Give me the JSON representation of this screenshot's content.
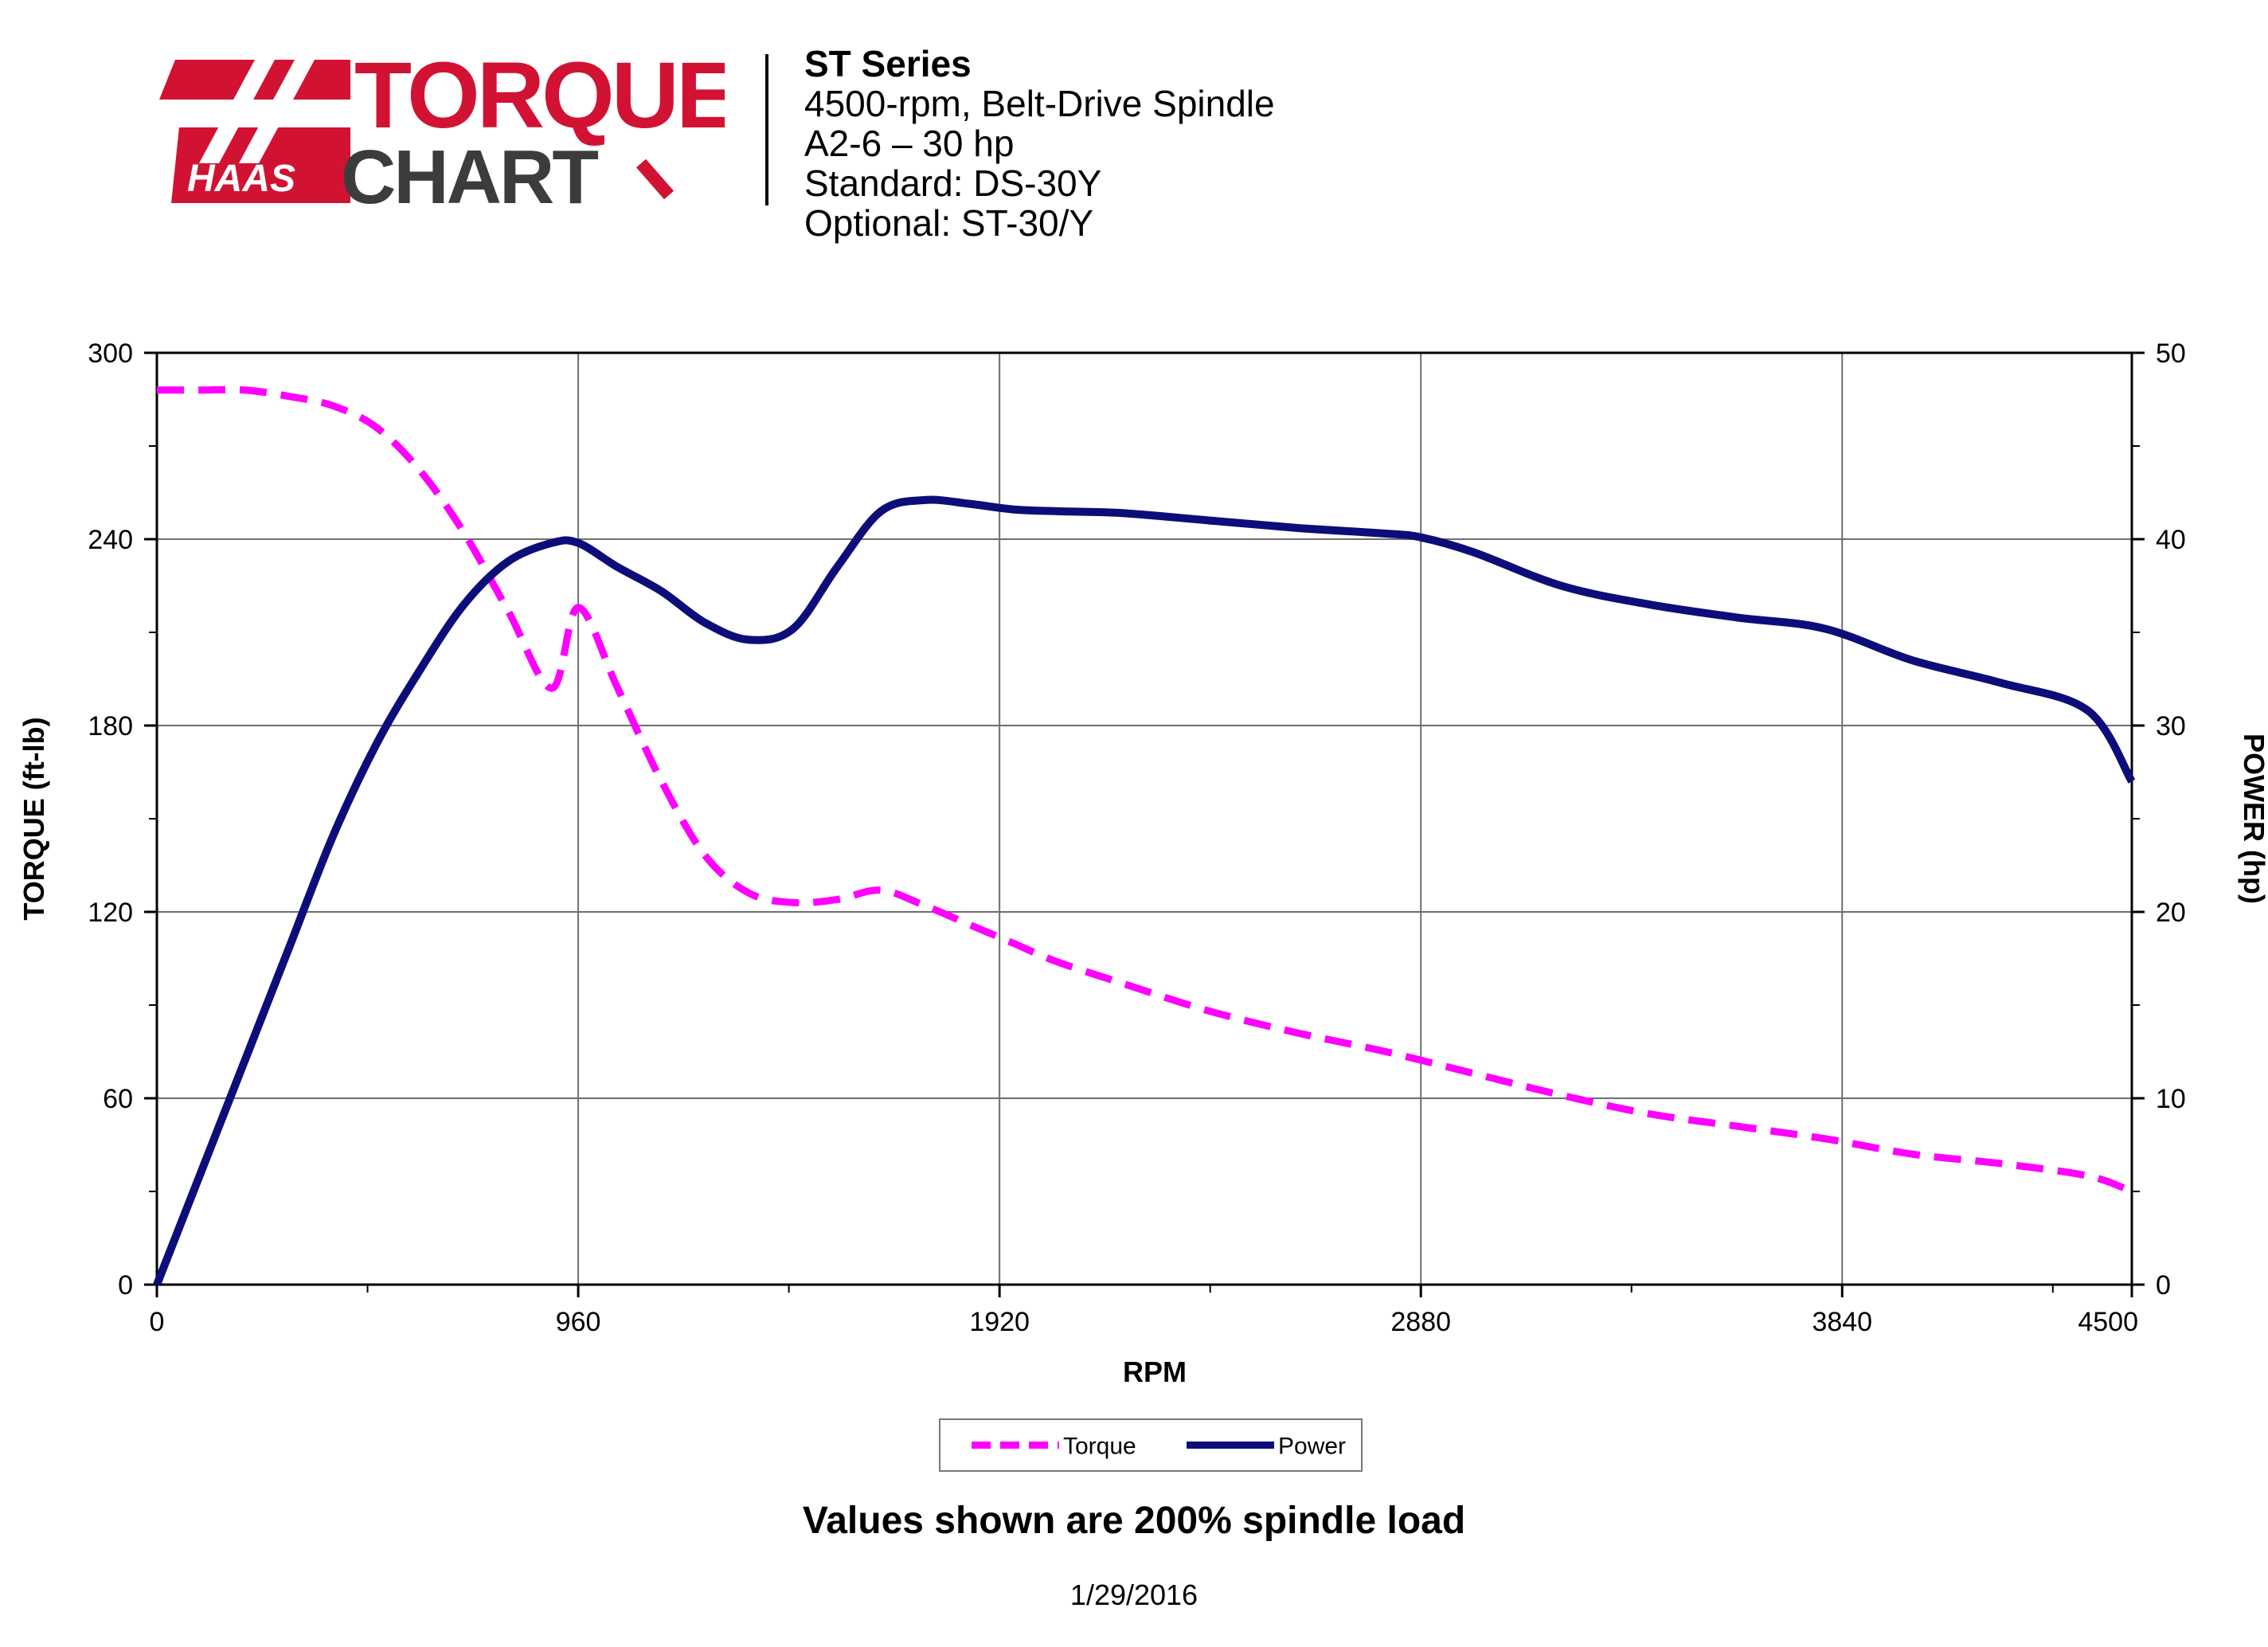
{
  "logo": {
    "brand": "HAAS",
    "line1": "TORQUE",
    "line2": "CHART",
    "colors": {
      "red": "#d21232",
      "dark": "#3c3c3c"
    }
  },
  "header": {
    "series": "ST Series",
    "line2": "4500-rpm, Belt-Drive Spindle",
    "line3": "A2-6 – 30 hp",
    "line4": "Standard: DS-30Y",
    "line5": "Optional: ST-30/Y"
  },
  "chart_data": {
    "type": "line",
    "xlabel": "RPM",
    "ylabel_left": "TORQUE (ft-lb)",
    "ylabel_right": "POWER (hp)",
    "xlim": [
      0,
      4500
    ],
    "ylim_left": [
      0,
      300
    ],
    "ylim_right": [
      0,
      50
    ],
    "x_ticks": [
      "0",
      "960",
      "1920",
      "2880",
      "3840",
      "4500"
    ],
    "y_ticks_left": [
      "0",
      "60",
      "120",
      "180",
      "240",
      "300"
    ],
    "y_ticks_right": [
      "0",
      "10",
      "20",
      "30",
      "40",
      "50"
    ],
    "grid": true,
    "legend_position": "bottom-center",
    "series": [
      {
        "name": "Torque",
        "axis": "left",
        "color": "#ff00ff",
        "dash": "dashed",
        "x": [
          0,
          100,
          200,
          300,
          400,
          500,
          600,
          700,
          800,
          900,
          960,
          1050,
          1150,
          1250,
          1350,
          1450,
          1550,
          1650,
          1750,
          1850,
          1950,
          2050,
          2200,
          2400,
          2600,
          2800,
          3000,
          3200,
          3400,
          3600,
          3800,
          4000,
          4200,
          4400,
          4500
        ],
        "y": [
          288,
          288,
          288,
          286,
          283,
          276,
          262,
          242,
          217,
          192,
          218,
          192,
          162,
          138,
          126,
          123,
          124,
          127,
          122,
          116,
          110,
          104,
          97,
          88,
          81,
          75,
          68,
          61,
          55,
          51,
          47,
          42,
          39,
          35,
          30
        ]
      },
      {
        "name": "Power",
        "axis": "right",
        "color": "#0d0d7a",
        "dash": "solid",
        "x": [
          0,
          100,
          200,
          300,
          400,
          500,
          600,
          700,
          800,
          900,
          960,
          1050,
          1150,
          1250,
          1350,
          1450,
          1550,
          1650,
          1750,
          1850,
          1950,
          2050,
          2200,
          2400,
          2600,
          2800,
          2880,
          3000,
          3200,
          3400,
          3600,
          3800,
          4000,
          4200,
          4400,
          4500
        ],
        "y": [
          0,
          6,
          12,
          18,
          24,
          29,
          33,
          36.5,
          38.8,
          39.8,
          39.8,
          38.5,
          37.2,
          35.5,
          34.6,
          35.2,
          38.5,
          41.5,
          42.1,
          41.9,
          41.6,
          41.5,
          41.4,
          41.0,
          40.6,
          40.3,
          40.1,
          39.3,
          37.5,
          36.5,
          35.8,
          35.2,
          33.5,
          32.3,
          30.8,
          27
        ]
      }
    ]
  },
  "notes": {
    "load": "Values shown are 200% spindle load",
    "date": "1/29/2016"
  }
}
